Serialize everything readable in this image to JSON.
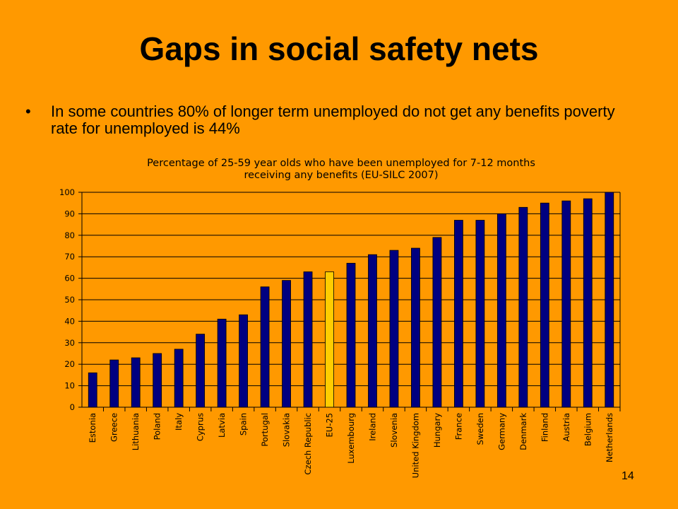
{
  "slide": {
    "title": "Gaps in social safety nets",
    "bullet_marker": "•",
    "bullet_text": "In some countries 80% of longer term unemployed do not get any benefits poverty rate for unemployed is 44%",
    "page_number": "14"
  },
  "chart_data": {
    "type": "bar",
    "title_lines": [
      "Percentage of 25-59 year olds who have been unemployed for 7-12 months",
      "receiving any benefits (EU-SILC 2007)"
    ],
    "categories": [
      "Estonia",
      "Greece",
      "Lithuania",
      "Poland",
      "Italy",
      "Cyprus",
      "Latvia",
      "Spain",
      "Portugal",
      "Slovakia",
      "Czech Republic",
      "EU-25",
      "Luxembourg",
      "Ireland",
      "Slovenia",
      "United Kingdom",
      "Hungary",
      "France",
      "Sweden",
      "Germany",
      "Denmark",
      "Finland",
      "Austria",
      "Belgium",
      "Netherlands"
    ],
    "values": [
      16,
      22,
      23,
      25,
      27,
      34,
      41,
      43,
      56,
      59,
      63,
      63,
      67,
      71,
      73,
      74,
      79,
      87,
      87,
      90,
      93,
      95,
      96,
      97,
      100
    ],
    "highlight_category": "EU-25",
    "ylim": [
      0,
      100
    ],
    "yticks": [
      0,
      10,
      20,
      30,
      40,
      50,
      60,
      70,
      80,
      90,
      100
    ],
    "grid": true,
    "colors": {
      "bar": "#000080",
      "highlight_bar": "#FFCC00",
      "plot_background": "#FF9900",
      "gridline": "#000000",
      "text": "#000000"
    }
  }
}
